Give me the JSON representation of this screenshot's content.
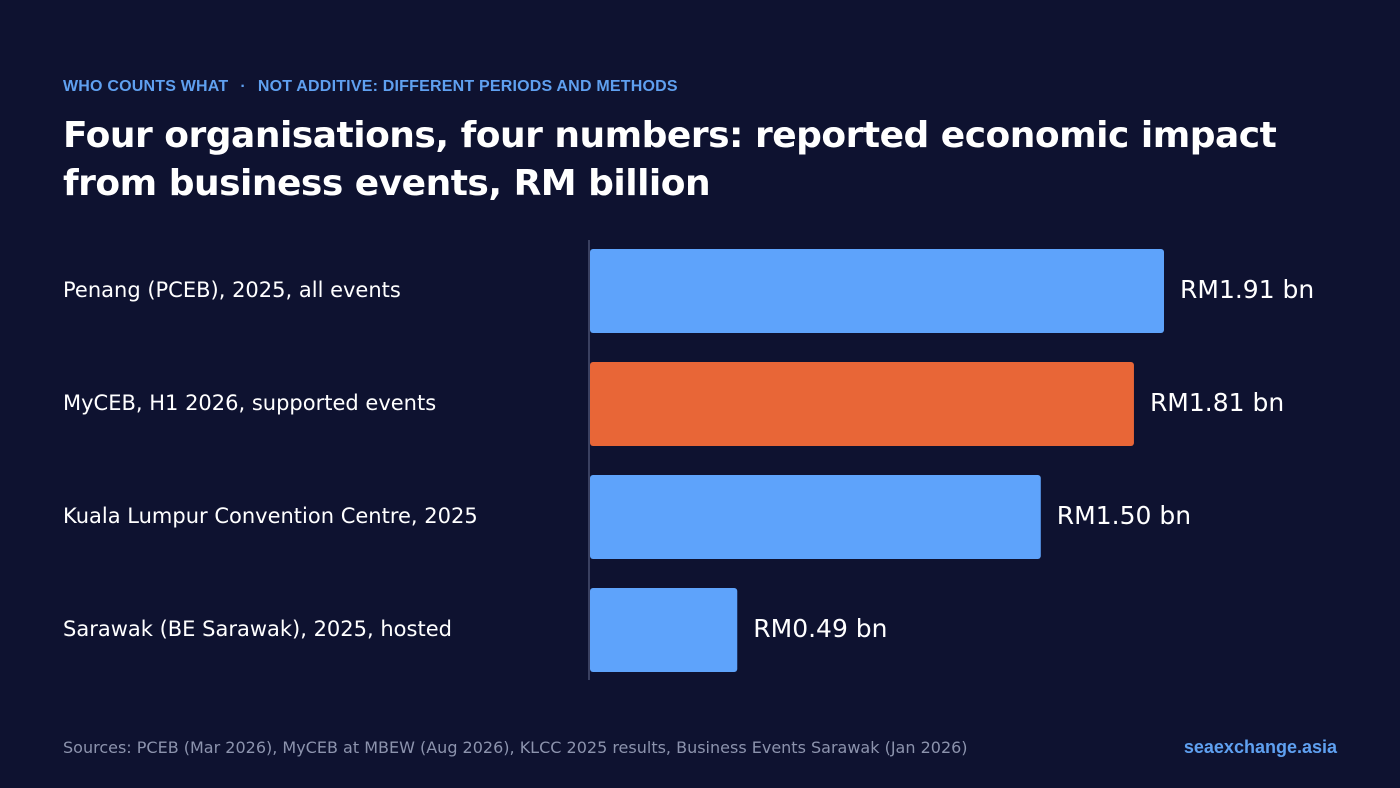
{
  "header": {
    "kicker_left": "WHO COUNTS WHAT",
    "kicker_separator": "·",
    "kicker_right": "NOT ADDITIVE: DIFFERENT PERIODS AND METHODS",
    "title": "Four organisations, four numbers: reported economic impact from business events, RM billion"
  },
  "footer": {
    "sources": "Sources: PCEB (Mar 2026), MyCEB at MBEW (Aug 2026), KLCC 2025 results, Business Events Sarawak (Jan 2026)",
    "brand": "seaexchange.asia"
  },
  "colors": {
    "background": "#0e1230",
    "default_bar": "#5ea3fb",
    "highlight_bar": "#e86637",
    "axis_line": "#3a4060",
    "accent_text": "#5fa0f0"
  },
  "chart_data": {
    "type": "bar",
    "orientation": "horizontal",
    "title": "Four organisations, four numbers: reported economic impact from business events, RM billion",
    "categories": [
      "Penang (PCEB), 2025, all events",
      "MyCEB, H1 2026, supported events",
      "Kuala Lumpur Convention Centre, 2025",
      "Sarawak (BE Sarawak), 2025, hosted"
    ],
    "values": [
      1.91,
      1.81,
      1.5,
      0.49
    ],
    "value_labels": [
      "RM1.91 bn",
      "RM1.81 bn",
      "RM1.50 bn",
      "RM0.49 bn"
    ],
    "highlight_index": 1,
    "xlim": [
      0,
      1.91
    ],
    "grid": false,
    "legend": "none"
  }
}
